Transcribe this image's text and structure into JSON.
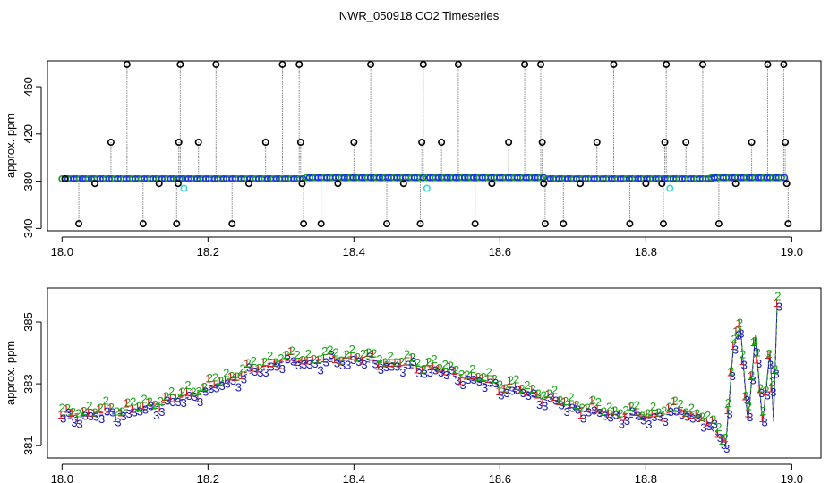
{
  "title": "NWR_050918  CO2 Timeseries",
  "chart_data": [
    {
      "type": "scatter",
      "ylabel": "approx. ppm",
      "xlim": [
        17.98,
        19.04
      ],
      "ylim": [
        338,
        482
      ],
      "xticks": [
        18.0,
        18.2,
        18.4,
        18.6,
        18.8,
        19.0
      ],
      "xtick_labels": [
        "18.0",
        "18.2",
        "18.4",
        "18.6",
        "18.8",
        "19.0"
      ],
      "yticks": [
        340,
        380,
        420,
        460
      ],
      "ytick_labels": [
        "340",
        "380",
        "420",
        "460"
      ],
      "baseline_segments": [
        {
          "x": [
            18.0,
            18.33
          ],
          "y": 382
        },
        {
          "x": [
            18.335,
            18.495
          ],
          "y": 383
        },
        {
          "x": [
            18.5,
            18.66
          ],
          "y": 383
        },
        {
          "x": [
            18.665,
            18.89
          ],
          "y": 382
        },
        {
          "x": [
            18.89,
            18.99
          ],
          "y": 383
        }
      ],
      "outliers": [
        {
          "x": 18.004,
          "y": 382
        },
        {
          "x": 18.023,
          "y": 344
        },
        {
          "x": 18.045,
          "y": 378
        },
        {
          "x": 18.067,
          "y": 413
        },
        {
          "x": 18.089,
          "y": 479
        },
        {
          "x": 18.111,
          "y": 344
        },
        {
          "x": 18.133,
          "y": 378
        },
        {
          "x": 18.157,
          "y": 344
        },
        {
          "x": 18.159,
          "y": 378
        },
        {
          "x": 18.16,
          "y": 413
        },
        {
          "x": 18.162,
          "y": 479
        },
        {
          "x": 18.187,
          "y": 413
        },
        {
          "x": 18.211,
          "y": 479
        },
        {
          "x": 18.233,
          "y": 344
        },
        {
          "x": 18.256,
          "y": 378
        },
        {
          "x": 18.279,
          "y": 413
        },
        {
          "x": 18.302,
          "y": 479
        },
        {
          "x": 18.325,
          "y": 479
        },
        {
          "x": 18.327,
          "y": 413
        },
        {
          "x": 18.329,
          "y": 378
        },
        {
          "x": 18.331,
          "y": 344
        },
        {
          "x": 18.355,
          "y": 344
        },
        {
          "x": 18.378,
          "y": 378
        },
        {
          "x": 18.4,
          "y": 413
        },
        {
          "x": 18.423,
          "y": 479
        },
        {
          "x": 18.445,
          "y": 344
        },
        {
          "x": 18.468,
          "y": 378
        },
        {
          "x": 18.491,
          "y": 344
        },
        {
          "x": 18.493,
          "y": 413
        },
        {
          "x": 18.495,
          "y": 479
        },
        {
          "x": 18.52,
          "y": 413
        },
        {
          "x": 18.543,
          "y": 479
        },
        {
          "x": 18.566,
          "y": 344
        },
        {
          "x": 18.589,
          "y": 378
        },
        {
          "x": 18.612,
          "y": 413
        },
        {
          "x": 18.634,
          "y": 479
        },
        {
          "x": 18.656,
          "y": 479
        },
        {
          "x": 18.658,
          "y": 413
        },
        {
          "x": 18.66,
          "y": 378
        },
        {
          "x": 18.662,
          "y": 344
        },
        {
          "x": 18.687,
          "y": 344
        },
        {
          "x": 18.71,
          "y": 378
        },
        {
          "x": 18.733,
          "y": 413
        },
        {
          "x": 18.756,
          "y": 479
        },
        {
          "x": 18.778,
          "y": 344
        },
        {
          "x": 18.8,
          "y": 378
        },
        {
          "x": 18.822,
          "y": 378
        },
        {
          "x": 18.824,
          "y": 344
        },
        {
          "x": 18.826,
          "y": 413
        },
        {
          "x": 18.828,
          "y": 479
        },
        {
          "x": 18.855,
          "y": 413
        },
        {
          "x": 18.878,
          "y": 479
        },
        {
          "x": 18.9,
          "y": 344
        },
        {
          "x": 18.923,
          "y": 378
        },
        {
          "x": 18.945,
          "y": 413
        },
        {
          "x": 18.967,
          "y": 479
        },
        {
          "x": 18.989,
          "y": 479
        },
        {
          "x": 18.991,
          "y": 413
        },
        {
          "x": 18.993,
          "y": 378
        },
        {
          "x": 18.995,
          "y": 344
        }
      ],
      "cyan_points": [
        {
          "x": 18.167,
          "y": 374
        },
        {
          "x": 18.5,
          "y": 374
        },
        {
          "x": 18.833,
          "y": 374
        }
      ],
      "colors": {
        "baseline": "#1a33e6",
        "baseline_edge": "#18a018",
        "outlier": "#000000",
        "cyan": "#38d8d8",
        "spike": "#8a8a8a"
      }
    },
    {
      "type": "scatter",
      "ylabel": "approx. ppm",
      "xlim": [
        17.98,
        19.04
      ],
      "ylim": [
        380.6,
        386.1
      ],
      "xticks": [
        18.0,
        18.2,
        18.4,
        18.6,
        18.8,
        19.0
      ],
      "xtick_labels": [
        "18.0",
        "18.2",
        "18.4",
        "18.6",
        "18.8",
        "19.0"
      ],
      "yticks": [
        381,
        383,
        385
      ],
      "ytick_labels": [
        "381",
        "383",
        "385"
      ],
      "series": [
        {
          "name": "1",
          "color": "#e01818",
          "offset": 0.12
        },
        {
          "name": "2",
          "color": "#18a818",
          "offset": 0.22
        },
        {
          "name": "3",
          "color": "#1a1ab4",
          "offset": -0.05
        }
      ],
      "trend": [
        {
          "x": 18.0,
          "y": 381.9
        },
        {
          "x": 18.05,
          "y": 382.0
        },
        {
          "x": 18.1,
          "y": 382.1
        },
        {
          "x": 18.15,
          "y": 382.4
        },
        {
          "x": 18.2,
          "y": 382.8
        },
        {
          "x": 18.25,
          "y": 383.3
        },
        {
          "x": 18.3,
          "y": 383.7
        },
        {
          "x": 18.35,
          "y": 383.7
        },
        {
          "x": 18.4,
          "y": 383.8
        },
        {
          "x": 18.45,
          "y": 383.6
        },
        {
          "x": 18.5,
          "y": 383.5
        },
        {
          "x": 18.55,
          "y": 383.2
        },
        {
          "x": 18.6,
          "y": 382.9
        },
        {
          "x": 18.65,
          "y": 382.6
        },
        {
          "x": 18.7,
          "y": 382.2
        },
        {
          "x": 18.75,
          "y": 382.0
        },
        {
          "x": 18.8,
          "y": 381.9
        },
        {
          "x": 18.85,
          "y": 382.1
        },
        {
          "x": 18.88,
          "y": 381.8
        },
        {
          "x": 18.9,
          "y": 381.3
        },
        {
          "x": 18.91,
          "y": 381.1
        },
        {
          "x": 18.92,
          "y": 384.2
        },
        {
          "x": 18.93,
          "y": 384.7
        },
        {
          "x": 18.94,
          "y": 381.7
        },
        {
          "x": 18.95,
          "y": 384.5
        },
        {
          "x": 18.96,
          "y": 381.7
        },
        {
          "x": 18.97,
          "y": 384.0
        },
        {
          "x": 18.975,
          "y": 381.8
        },
        {
          "x": 18.98,
          "y": 385.6
        }
      ]
    }
  ]
}
